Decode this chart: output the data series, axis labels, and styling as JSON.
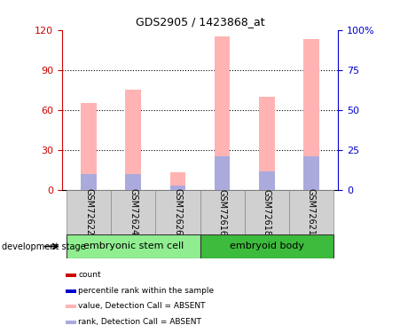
{
  "title": "GDS2905 / 1423868_at",
  "samples": [
    "GSM72622",
    "GSM72624",
    "GSM72626",
    "GSM72616",
    "GSM72618",
    "GSM72621"
  ],
  "group_labels": [
    "embryonic stem cell",
    "embryoid body"
  ],
  "group_split": 3,
  "pink_values": [
    65,
    75,
    13,
    115,
    70,
    113
  ],
  "blue_values": [
    12,
    12,
    3,
    25,
    14,
    25
  ],
  "left_ylim": [
    0,
    120
  ],
  "right_ylim": [
    0,
    100
  ],
  "left_yticks": [
    0,
    30,
    60,
    90,
    120
  ],
  "right_yticks": [
    0,
    25,
    50,
    75,
    100
  ],
  "right_yticklabels": [
    "0",
    "25",
    "50",
    "75",
    "100%"
  ],
  "left_axis_color": "#cc0000",
  "right_axis_color": "#0000cc",
  "bar_width": 0.35,
  "pink_color": "#ffb3b3",
  "blue_color": "#aaaadd",
  "legend_items": [
    {
      "color": "#cc0000",
      "label": "count"
    },
    {
      "color": "#0000cc",
      "label": "percentile rank within the sample"
    },
    {
      "color": "#ffb3b3",
      "label": "value, Detection Call = ABSENT"
    },
    {
      "color": "#aaaadd",
      "label": "rank, Detection Call = ABSENT"
    }
  ],
  "dev_stage_label": "development stage",
  "background_color": "#ffffff",
  "plot_bg_color": "#ffffff",
  "sample_box_color": "#d0d0d0",
  "group_box_color_1": "#90EE90",
  "group_box_color_2": "#3dbb3d"
}
